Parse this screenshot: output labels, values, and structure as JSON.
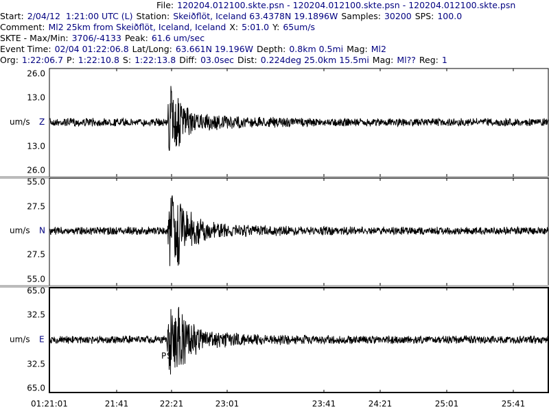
{
  "header": {
    "lines": [
      [
        "File:",
        "120204.012100.skte.psn - 120204.012100.skte.psn - 120204.012100.skte.psn"
      ],
      [
        "Start:",
        "2/04/12  1:21:00 UTC (L)",
        "Station:",
        "Skeiðflöt, Iceland 63.4378N 19.1896W",
        "Samples:",
        "30200",
        "SPS:",
        "100.0"
      ],
      [
        "Comment:",
        "Ml2 25km from Skeiðflöt, Iceland, Iceland",
        "X:",
        "5:01.0",
        "Y:",
        "65um/s"
      ],
      [
        "SKTE - Max/Min:",
        "3706/-4133",
        "Peak:",
        "61.6 um/sec"
      ],
      [
        "Event Time:",
        "02/04 01:22:06.8",
        "Lat/Long:",
        "63.661N 19.196W",
        "Depth:",
        "0.8km 0.5mi",
        "Mag:",
        "Ml2"
      ],
      [
        "Org:",
        "1:22:06.7",
        "P:",
        "1:22:10.8",
        "S:",
        "1:22:13.8",
        "Diff:",
        "03.0sec",
        "Dist:",
        "0.224deg 25.0km 15.5mi",
        "Mag:",
        "Ml??",
        "Reg:",
        "1"
      ]
    ]
  },
  "panels": [
    {
      "unit": "um/s",
      "channel": "Z",
      "ticks": [
        "26.0",
        "13.0",
        "13.0",
        "26.0"
      ]
    },
    {
      "unit": "um/s",
      "channel": "N",
      "ticks": [
        "55.0",
        "27.5",
        "27.5",
        "55.0"
      ]
    },
    {
      "unit": "um/s",
      "channel": "E",
      "ticks": [
        "65.0",
        "32.5",
        "32.5",
        "65.0"
      ],
      "markers": [
        "P",
        "S"
      ]
    }
  ],
  "time_axis": [
    "01:21:01",
    "21:41",
    "22:21",
    "23:01",
    "23:41",
    "24:21",
    "25:01",
    "25:41"
  ]
}
